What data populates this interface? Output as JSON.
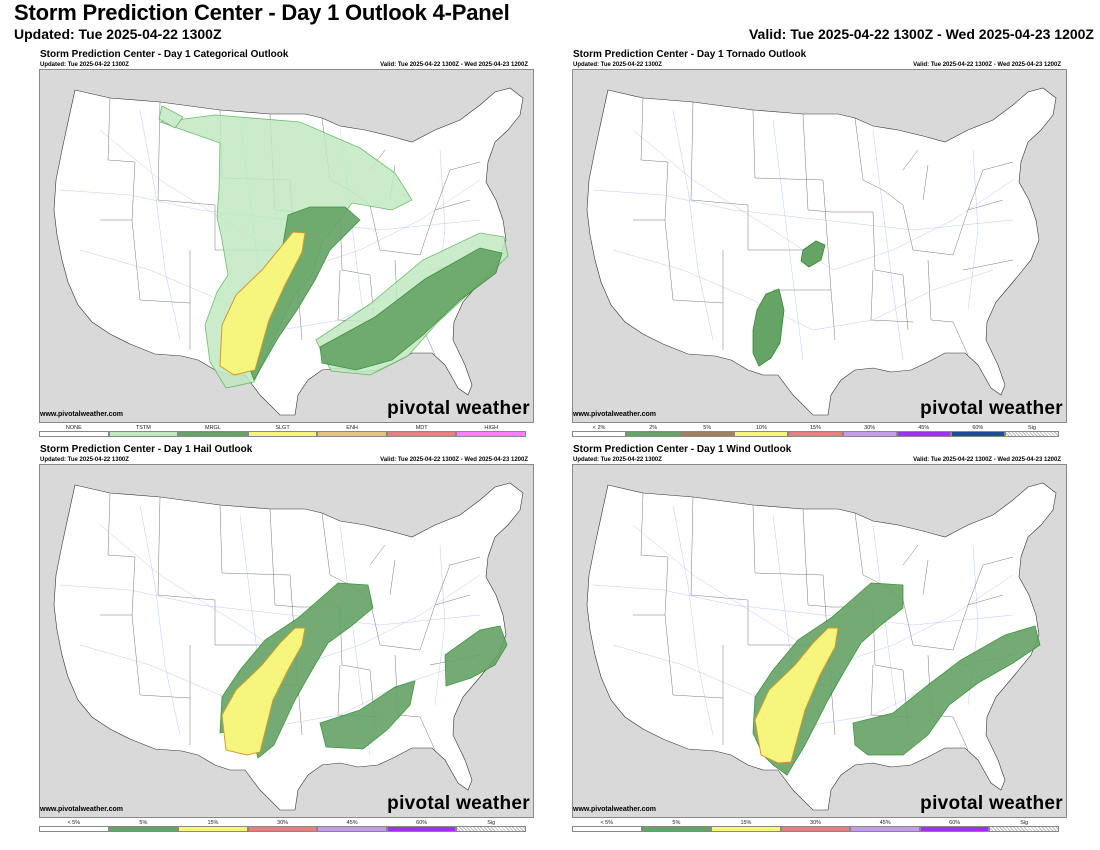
{
  "header": {
    "title": "Storm Prediction Center - Day 1 Outlook 4-Panel",
    "updated": "Updated: Tue 2025-04-22 1300Z",
    "valid": "Valid: Tue 2025-04-22 1300Z - Wed 2025-04-23 1200Z"
  },
  "panels": [
    {
      "title": "Storm Prediction Center - Day 1 Categorical Outlook",
      "updated": "Updated: Tue 2025-04-22 1300Z",
      "valid": "Valid: Tue 2025-04-22 1300Z - Wed 2025-04-23 1200Z",
      "site": "www.pivotalweather.com",
      "brand": "pivotal weather",
      "legend": [
        {
          "label": "NONE",
          "color": "#ffffff"
        },
        {
          "label": "TSTM",
          "color": "#c1e9c1"
        },
        {
          "label": "MRGL",
          "color": "#66a366"
        },
        {
          "label": "SLGT",
          "color": "#f6f67f"
        },
        {
          "label": "ENH",
          "color": "#e6c27f"
        },
        {
          "label": "MDT",
          "color": "#e67f7f"
        },
        {
          "label": "HIGH",
          "color": "#ff7fff"
        }
      ]
    },
    {
      "title": "Storm Prediction Center - Day 1 Tornado Outlook",
      "updated": "Updated: Tue 2025-04-22 1300Z",
      "valid": "Valid: Tue 2025-04-22 1300Z - Wed 2025-04-23 1200Z",
      "site": "www.pivotalweather.com",
      "brand": "pivotal weather",
      "legend": [
        {
          "label": "< 2%",
          "color": "#ffffff"
        },
        {
          "label": "2%",
          "color": "#66a366"
        },
        {
          "label": "5%",
          "color": "#a08060"
        },
        {
          "label": "10%",
          "color": "#f6f67f"
        },
        {
          "label": "15%",
          "color": "#e67f7f"
        },
        {
          "label": "30%",
          "color": "#c39be6"
        },
        {
          "label": "45%",
          "color": "#9933ee"
        },
        {
          "label": "60%",
          "color": "#1a4c99"
        },
        {
          "label": "Sig",
          "color": "hatch"
        }
      ]
    },
    {
      "title": "Storm Prediction Center - Day 1 Hail Outlook",
      "updated": "Updated: Tue 2025-04-22 1300Z",
      "valid": "Valid: Tue 2025-04-22 1300Z - Wed 2025-04-23 1200Z",
      "site": "www.pivotalweather.com",
      "brand": "pivotal weather",
      "legend": [
        {
          "label": "< 5%",
          "color": "#ffffff"
        },
        {
          "label": "5%",
          "color": "#66a366"
        },
        {
          "label": "15%",
          "color": "#f6f67f"
        },
        {
          "label": "30%",
          "color": "#e67f7f"
        },
        {
          "label": "45%",
          "color": "#c39be6"
        },
        {
          "label": "60%",
          "color": "#9933ee"
        },
        {
          "label": "Sig",
          "color": "hatch"
        }
      ]
    },
    {
      "title": "Storm Prediction Center - Day 1 Wind Outlook",
      "updated": "Updated: Tue 2025-04-22 1300Z",
      "valid": "Valid: Tue 2025-04-22 1300Z - Wed 2025-04-23 1200Z",
      "site": "www.pivotalweather.com",
      "brand": "pivotal weather",
      "legend": [
        {
          "label": "< 5%",
          "color": "#ffffff"
        },
        {
          "label": "5%",
          "color": "#66a366"
        },
        {
          "label": "15%",
          "color": "#f6f67f"
        },
        {
          "label": "30%",
          "color": "#e67f7f"
        },
        {
          "label": "45%",
          "color": "#c39be6"
        },
        {
          "label": "60%",
          "color": "#9933ee"
        },
        {
          "label": "Sig",
          "color": "hatch"
        }
      ]
    }
  ]
}
